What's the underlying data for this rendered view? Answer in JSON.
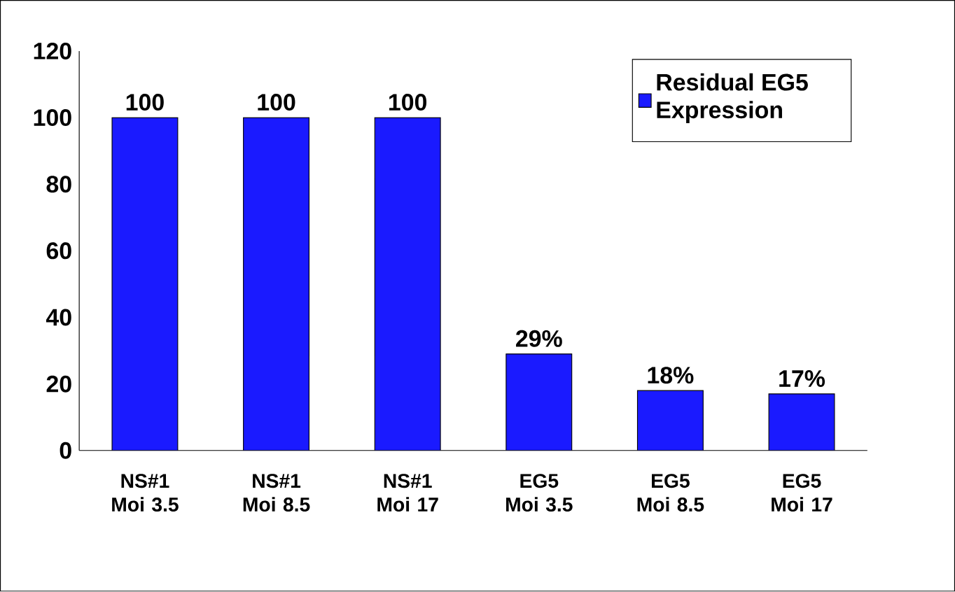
{
  "chart_data": {
    "type": "bar",
    "categories": [
      "NS#1 Moi 3.5",
      "NS#1 Moi 8.5",
      "NS#1 Moi 17",
      "EG5 Moi 3.5",
      "EG5 Moi 8.5",
      "EG5 Moi 17"
    ],
    "series": [
      {
        "name": "Residual EG5 Expression",
        "color": "#1a1aff",
        "values": [
          100,
          100,
          100,
          29,
          18,
          17
        ],
        "value_labels": [
          "100",
          "100",
          "100",
          "29%",
          "18%",
          "17%"
        ]
      }
    ],
    "ylim": [
      0,
      120
    ],
    "yticks": [
      0,
      20,
      40,
      60,
      80,
      100,
      120
    ],
    "grid": false,
    "legend": "top right"
  }
}
